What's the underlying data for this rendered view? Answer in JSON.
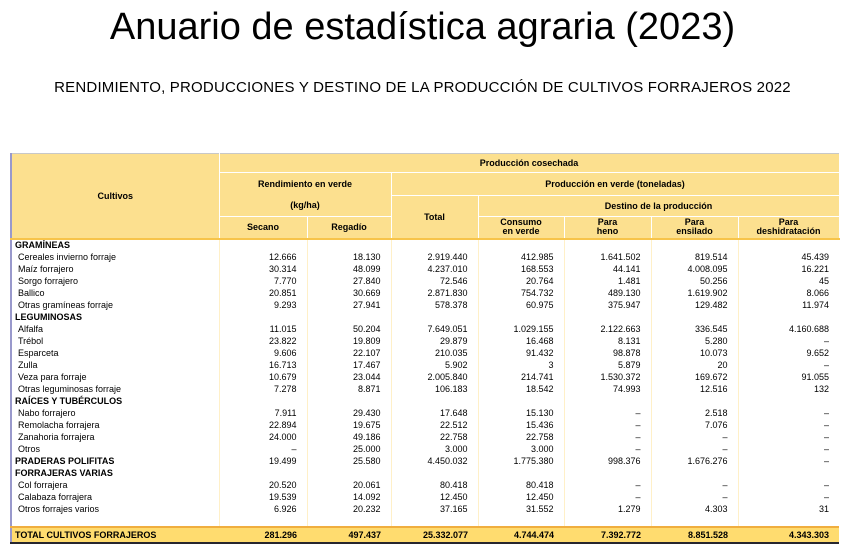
{
  "header": {
    "title": "Anuario de estadística agraria (2023)",
    "subtitle": "RENDIMIENTO, PRODUCCIONES Y DESTINO DE LA PRODUCCIÓN DE CULTIVOS FORRAJEROS 2022"
  },
  "colors": {
    "header_bg": "#FCE08F",
    "total_bg": "#FFDC6F",
    "gold_border": "#F7C44A",
    "total_top_border": "#F0AE3F",
    "grid_line": "#FFF0C8",
    "left_border": "#9999CC",
    "dark_border": "#26262E"
  },
  "table": {
    "headers": {
      "cultivos": "Cultivos",
      "produccion_cosechada": "Producción cosechada",
      "rendimiento_en_verde": "Rendimiento en verde\n(kg/ha)",
      "produccion_en_verde": "Producción en verde (toneladas)",
      "total": "Total",
      "destino": "Destino de la producción",
      "secano": "Secano",
      "regadio": "Regadío",
      "consumo_en_verde": "Consumo\nen verde",
      "para_heno": "Para\nheno",
      "para_ensilado": "Para\nensilado",
      "para_deshidratacion": "Para\ndeshidratación"
    },
    "rows": [
      {
        "label": "GRAMÍNEAS",
        "section": true,
        "values": [
          "",
          "",
          "",
          "",
          "",
          "",
          ""
        ]
      },
      {
        "label": "Cereales invierno forraje",
        "section": false,
        "values": [
          "12.666",
          "18.130",
          "2.919.440",
          "412.985",
          "1.641.502",
          "819.514",
          "45.439"
        ]
      },
      {
        "label": "Maíz forrajero",
        "section": false,
        "values": [
          "30.314",
          "48.099",
          "4.237.010",
          "168.553",
          "44.141",
          "4.008.095",
          "16.221"
        ]
      },
      {
        "label": "Sorgo forrajero",
        "section": false,
        "values": [
          "7.770",
          "27.840",
          "72.546",
          "20.764",
          "1.481",
          "50.256",
          "45"
        ]
      },
      {
        "label": "Ballico",
        "section": false,
        "values": [
          "20.851",
          "30.669",
          "2.871.830",
          "754.732",
          "489.130",
          "1.619.902",
          "8.066"
        ]
      },
      {
        "label": "Otras gramíneas forraje",
        "section": false,
        "values": [
          "9.293",
          "27.941",
          "578.378",
          "60.975",
          "375.947",
          "129.482",
          "11.974"
        ]
      },
      {
        "label": "LEGUMINOSAS",
        "section": true,
        "values": [
          "",
          "",
          "",
          "",
          "",
          "",
          ""
        ]
      },
      {
        "label": "Alfalfa",
        "section": false,
        "values": [
          "11.015",
          "50.204",
          "7.649.051",
          "1.029.155",
          "2.122.663",
          "336.545",
          "4.160.688"
        ]
      },
      {
        "label": "Trébol",
        "section": false,
        "values": [
          "23.822",
          "19.809",
          "29.879",
          "16.468",
          "8.131",
          "5.280",
          "–"
        ]
      },
      {
        "label": "Esparceta",
        "section": false,
        "values": [
          "9.606",
          "22.107",
          "210.035",
          "91.432",
          "98.878",
          "10.073",
          "9.652"
        ]
      },
      {
        "label": "Zulla",
        "section": false,
        "values": [
          "16.713",
          "17.467",
          "5.902",
          "3",
          "5.879",
          "20",
          "–"
        ]
      },
      {
        "label": "Veza para forraje",
        "section": false,
        "values": [
          "10.679",
          "23.044",
          "2.005.840",
          "214.741",
          "1.530.372",
          "169.672",
          "91.055"
        ]
      },
      {
        "label": "Otras leguminosas forraje",
        "section": false,
        "values": [
          "7.278",
          "8.871",
          "106.183",
          "18.542",
          "74.993",
          "12.516",
          "132"
        ]
      },
      {
        "label": "RAÍCES Y TUBÉRCULOS",
        "section": true,
        "values": [
          "",
          "",
          "",
          "",
          "",
          "",
          ""
        ]
      },
      {
        "label": "Nabo forrajero",
        "section": false,
        "values": [
          "7.911",
          "29.430",
          "17.648",
          "15.130",
          "–",
          "2.518",
          "–"
        ]
      },
      {
        "label": "Remolacha forrajera",
        "section": false,
        "values": [
          "22.894",
          "19.675",
          "22.512",
          "15.436",
          "–",
          "7.076",
          "–"
        ]
      },
      {
        "label": "Zanahoria forrajera",
        "section": false,
        "values": [
          "24.000",
          "49.186",
          "22.758",
          "22.758",
          "–",
          "–",
          "–"
        ]
      },
      {
        "label": "Otros",
        "section": false,
        "values": [
          "–",
          "25.000",
          "3.000",
          "3.000",
          "–",
          "–",
          "–"
        ]
      },
      {
        "label": "PRADERAS POLIFITAS",
        "section": true,
        "values": [
          "19.499",
          "25.580",
          "4.450.032",
          "1.775.380",
          "998.376",
          "1.676.276",
          "–"
        ]
      },
      {
        "label": "FORRAJERAS VARIAS",
        "section": true,
        "values": [
          "",
          "",
          "",
          "",
          "",
          "",
          ""
        ]
      },
      {
        "label": "Col forrajera",
        "section": false,
        "values": [
          "20.520",
          "20.061",
          "80.418",
          "80.418",
          "–",
          "–",
          "–"
        ]
      },
      {
        "label": "Calabaza forrajera",
        "section": false,
        "values": [
          "19.539",
          "14.092",
          "12.450",
          "12.450",
          "–",
          "–",
          "–"
        ]
      },
      {
        "label": "Otros forrajes varios",
        "section": false,
        "values": [
          "6.926",
          "20.232",
          "37.165",
          "31.552",
          "1.279",
          "4.303",
          "31"
        ]
      },
      {
        "label": "",
        "section": false,
        "blank": true,
        "values": [
          "",
          "",
          "",
          "",
          "",
          "",
          ""
        ]
      }
    ],
    "total_row": {
      "label": "TOTAL CULTIVOS FORRAJEROS",
      "values": [
        "281.296",
        "497.437",
        "25.332.077",
        "4.744.474",
        "7.392.772",
        "8.851.528",
        "4.343.303"
      ]
    }
  }
}
